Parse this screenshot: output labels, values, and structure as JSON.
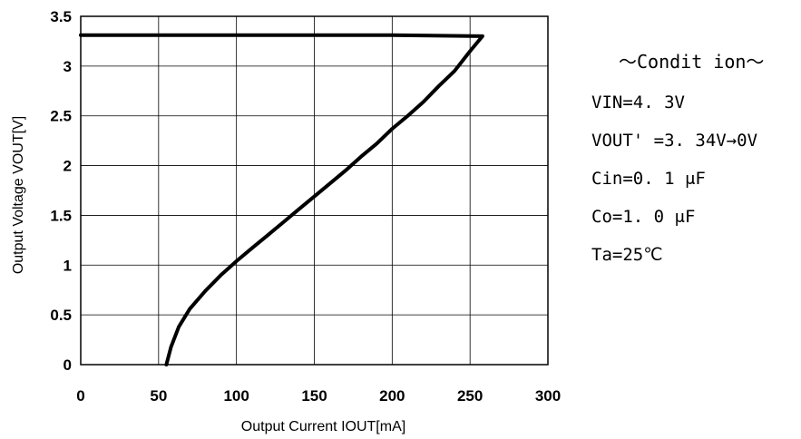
{
  "chart_data": {
    "type": "line",
    "title": "",
    "xlabel": "Output Current  IOUT[mA]",
    "ylabel": "Output Voltage  VOUT[V]",
    "xlim": [
      0,
      300
    ],
    "ylim": [
      0,
      3.5
    ],
    "x_ticks": [
      "0",
      "50",
      "100",
      "150",
      "200",
      "250",
      "300"
    ],
    "y_ticks": [
      "0",
      "0.5",
      "1",
      "1.5",
      "2",
      "2.5",
      "3",
      "3.5"
    ],
    "grid": true,
    "legend": "none",
    "line_color": "#000000",
    "series": [
      {
        "points": [
          [
            0,
            3.31
          ],
          [
            100,
            3.31
          ],
          [
            200,
            3.31
          ],
          [
            258,
            3.3
          ],
          [
            250,
            3.15
          ],
          [
            240,
            2.95
          ],
          [
            230,
            2.8
          ],
          [
            220,
            2.64
          ],
          [
            210,
            2.5
          ],
          [
            200,
            2.37
          ],
          [
            190,
            2.22
          ],
          [
            180,
            2.09
          ],
          [
            170,
            1.95
          ],
          [
            160,
            1.82
          ],
          [
            150,
            1.69
          ],
          [
            140,
            1.56
          ],
          [
            130,
            1.43
          ],
          [
            120,
            1.3
          ],
          [
            110,
            1.17
          ],
          [
            100,
            1.04
          ],
          [
            90,
            0.9
          ],
          [
            80,
            0.74
          ],
          [
            70,
            0.56
          ],
          [
            63,
            0.38
          ],
          [
            58,
            0.18
          ],
          [
            55,
            0.0
          ]
        ]
      }
    ]
  },
  "conditions": {
    "title": "～Condit ion～",
    "lines": [
      "VIN=4. 3V",
      "VOUT' =3. 34V→0V",
      "Cin=0. 1 μF",
      "Co=1. 0 μF",
      "Ta=25℃"
    ]
  }
}
